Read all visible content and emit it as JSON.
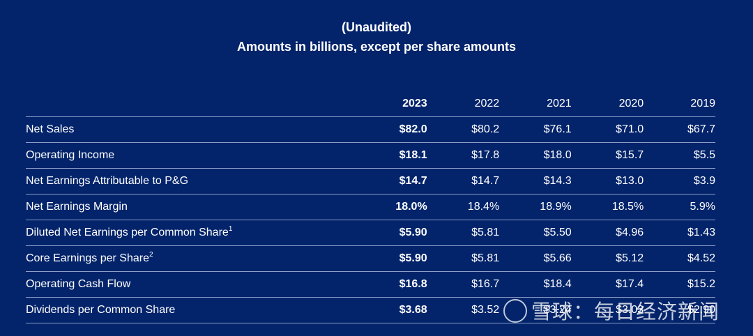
{
  "header": {
    "line1": "(Unaudited)",
    "line2": "Amounts in billions, except per share amounts"
  },
  "table": {
    "years": [
      "2023",
      "2022",
      "2021",
      "2020",
      "2019"
    ],
    "rows": [
      {
        "label": "Net Sales",
        "sup": "",
        "values": [
          "$82.0",
          "$80.2",
          "$76.1",
          "$71.0",
          "$67.7"
        ]
      },
      {
        "label": "Operating Income",
        "sup": "",
        "values": [
          "$18.1",
          "$17.8",
          "$18.0",
          "$15.7",
          "$5.5"
        ]
      },
      {
        "label": "Net Earnings Attributable to P&G",
        "sup": "",
        "values": [
          "$14.7",
          "$14.7",
          "$14.3",
          "$13.0",
          "$3.9"
        ]
      },
      {
        "label": "Net Earnings Margin",
        "sup": "",
        "values": [
          "18.0%",
          "18.4%",
          "18.9%",
          "18.5%",
          "5.9%"
        ]
      },
      {
        "label": "Diluted Net Earnings per Common Share",
        "sup": "1",
        "values": [
          "$5.90",
          "$5.81",
          "$5.50",
          "$4.96",
          "$1.43"
        ]
      },
      {
        "label": "Core Earnings per Share",
        "sup": "2",
        "values": [
          "$5.90",
          "$5.81",
          "$5.66",
          "$5.12",
          "$4.52"
        ]
      },
      {
        "label": "Operating Cash Flow",
        "sup": "",
        "values": [
          "$16.8",
          "$16.7",
          "$18.4",
          "$17.4",
          "$15.2"
        ]
      },
      {
        "label": "Dividends per Common Share",
        "sup": "",
        "values": [
          "$3.68",
          "$3.52",
          "$3.24",
          "$3.03",
          "$2.90"
        ]
      }
    ]
  },
  "watermark": {
    "text": "雪球：每日经济新闻"
  }
}
